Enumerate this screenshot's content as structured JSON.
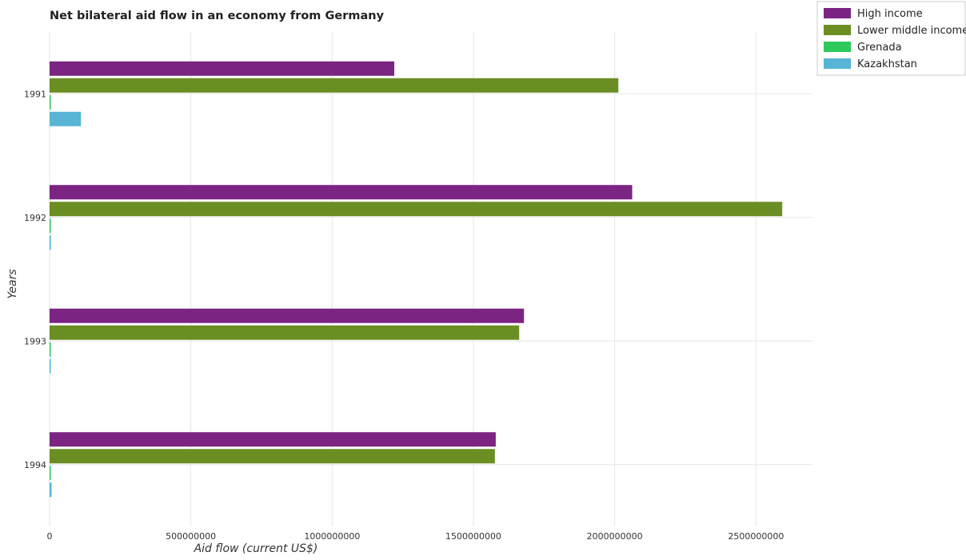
{
  "chart_data": {
    "type": "bar",
    "orientation": "horizontal",
    "title": "Net bilateral aid flow in an economy from Germany",
    "xlabel": "Aid flow (current US$)",
    "ylabel": "Years",
    "categories": [
      "1991",
      "1992",
      "1993",
      "1994"
    ],
    "xlim": [
      0,
      2700000000
    ],
    "xticks": [
      0,
      500000000,
      1000000000,
      1500000000,
      2000000000,
      2500000000
    ],
    "xtick_labels": [
      "0",
      "500000000",
      "1000000000",
      "1500000000",
      "2000000000",
      "2500000000"
    ],
    "grid": true,
    "legend_position": "top-right",
    "series": [
      {
        "name": "High income",
        "color": "#7b2482",
        "values": [
          1220000000,
          2062000000,
          1679000000,
          1579000000
        ]
      },
      {
        "name": "Lower middle income",
        "color": "#6b8e23",
        "values": [
          2013000000,
          2593000000,
          1662000000,
          1576000000
        ]
      },
      {
        "name": "Grenada",
        "color": "#2ec95c",
        "values": [
          100000,
          200000,
          200000,
          200000
        ]
      },
      {
        "name": "Kazakhstan",
        "color": "#57b4d4",
        "values": [
          111000000,
          4500000,
          200000,
          7000000
        ]
      }
    ]
  }
}
